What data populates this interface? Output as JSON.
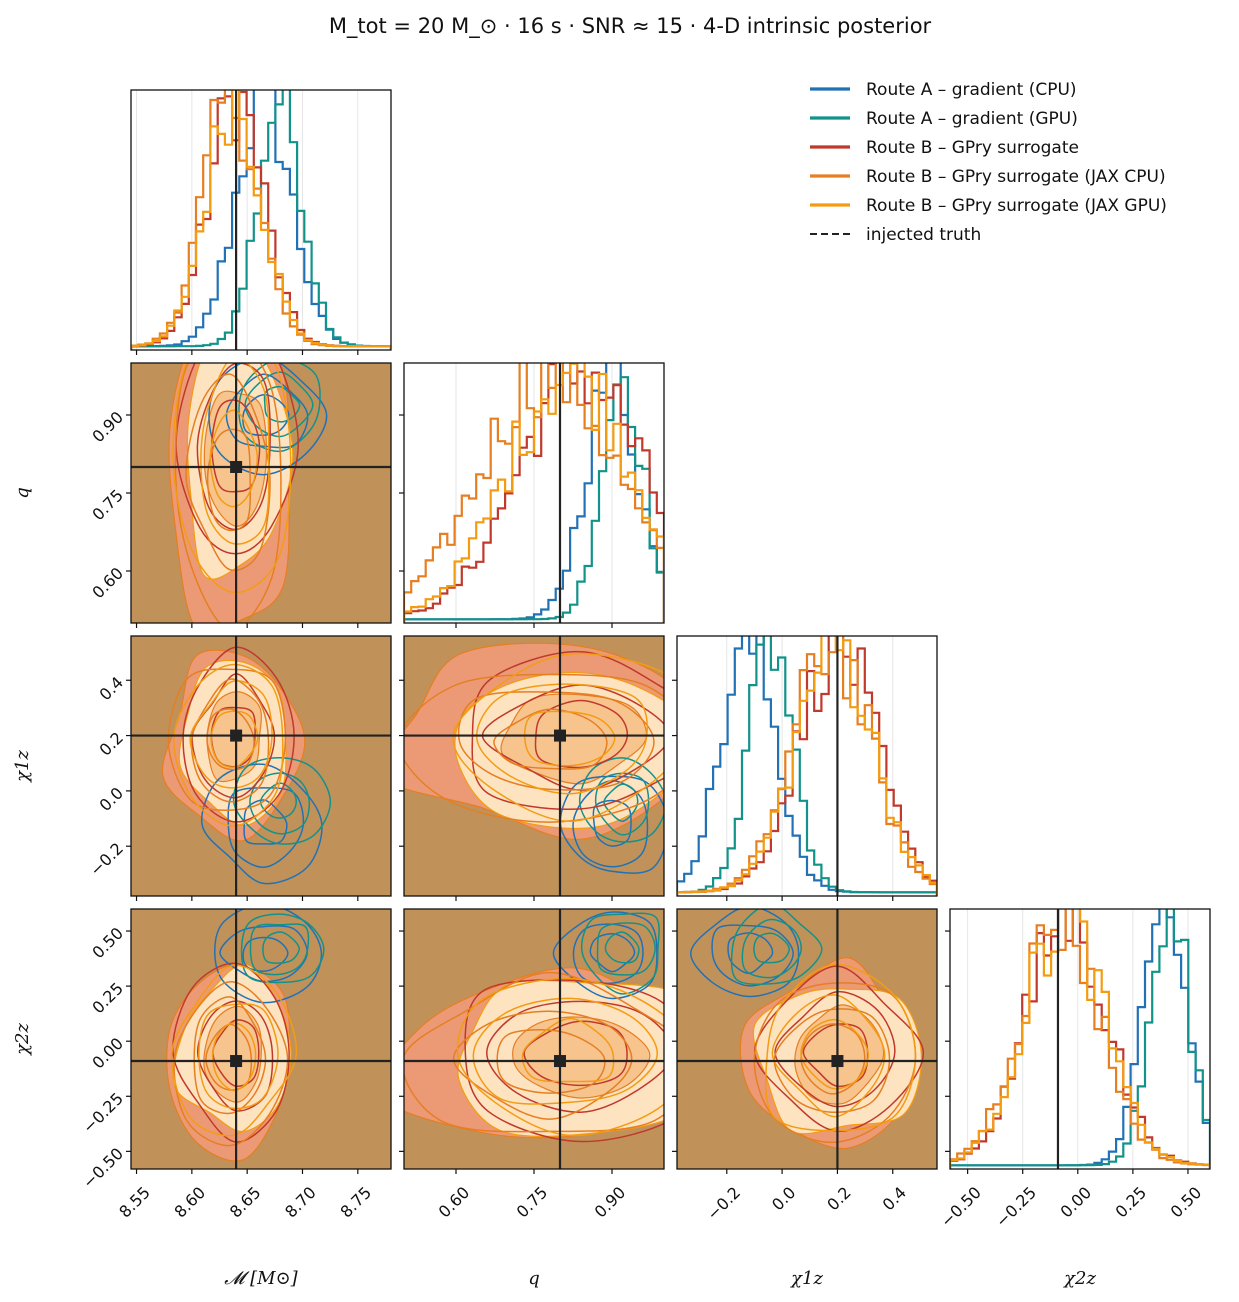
{
  "figure": {
    "title": "M_tot = 20 M_⊙   ·   16 s   ·   SNR ≈ 15   ·   4-D intrinsic posterior"
  },
  "colors": {
    "route_a_cpu": "#2271b5",
    "route_a_gpu": "#12938a",
    "route_b_gpry": "#c0392b",
    "route_b_jax_cpu": "#e67e22",
    "route_b_jax_gpu": "#f39c12",
    "truth": "#222222",
    "panel_background": "#c0925a",
    "fill_light": "#fde3c0",
    "fill_mid": "#f7c48e",
    "fill_red": "#ec9a76"
  },
  "chart_data": {
    "type": "corner",
    "parameters": [
      {
        "key": "mc",
        "label": "𝓜 [M⊙]",
        "range": [
          8.545,
          8.78
        ],
        "ticks": [
          "8.55",
          "8.60",
          "8.65",
          "8.70",
          "8.75"
        ],
        "tick_values": [
          8.55,
          8.6,
          8.65,
          8.7,
          8.75
        ]
      },
      {
        "key": "q",
        "label": "q",
        "range": [
          0.5,
          1.0
        ],
        "ticks": [
          "0.60",
          "0.75",
          "0.90"
        ],
        "tick_values": [
          0.6,
          0.75,
          0.9
        ]
      },
      {
        "key": "chi1z",
        "label": "χ1z",
        "range": [
          -0.38,
          0.56
        ],
        "ticks": [
          "−0.2",
          "0.0",
          "0.2",
          "0.4"
        ],
        "tick_values": [
          -0.2,
          0.0,
          0.2,
          0.4
        ]
      },
      {
        "key": "chi2z",
        "label": "χ2z",
        "range": [
          -0.58,
          0.6
        ],
        "ticks": [
          "−0.50",
          "−0.25",
          "0.00",
          "0.25",
          "0.50"
        ],
        "tick_values": [
          -0.5,
          -0.25,
          0.0,
          0.25,
          0.5
        ]
      }
    ],
    "truth": {
      "mc": 8.64,
      "q": 0.8,
      "chi1z": 0.2,
      "chi2z": -0.09
    },
    "series": [
      {
        "name": "Route A – gradient (CPU)",
        "color_key": "route_a_cpu",
        "centers": {
          "mc": 8.665,
          "q": 0.9,
          "chi1z": -0.12,
          "chi2z": 0.4
        },
        "spread": {
          "mc": 0.025,
          "q": 0.05,
          "chi1z": 0.1,
          "chi2z": 0.1
        }
      },
      {
        "name": "Route A – gradient (GPU)",
        "color_key": "route_a_gpu",
        "centers": {
          "mc": 8.68,
          "q": 0.92,
          "chi1z": -0.04,
          "chi2z": 0.42
        },
        "spread": {
          "mc": 0.02,
          "q": 0.04,
          "chi1z": 0.08,
          "chi2z": 0.09
        }
      },
      {
        "name": "Route B – GPry surrogate",
        "color_key": "route_b_gpry",
        "centers": {
          "mc": 8.64,
          "q": 0.84,
          "chi1z": 0.2,
          "chi2z": -0.05
        },
        "spread": {
          "mc": 0.025,
          "q": 0.12,
          "chi1z": 0.14,
          "chi2z": 0.18
        }
      },
      {
        "name": "Route B – GPry surrogate (JAX CPU)",
        "color_key": "route_b_jax_cpu",
        "centers": {
          "mc": 8.635,
          "q": 0.78,
          "chi1z": 0.18,
          "chi2z": -0.08
        },
        "spread": {
          "mc": 0.025,
          "q": 0.13,
          "chi1z": 0.14,
          "chi2z": 0.18
        }
      },
      {
        "name": "Route B – GPry surrogate (JAX GPU)",
        "color_key": "route_b_jax_gpu",
        "centers": {
          "mc": 8.638,
          "q": 0.82,
          "chi1z": 0.19,
          "chi2z": -0.06
        },
        "spread": {
          "mc": 0.025,
          "q": 0.12,
          "chi1z": 0.14,
          "chi2z": 0.18
        }
      }
    ],
    "legend": {
      "placement": "top-right",
      "entries": [
        {
          "label": "Route A – gradient (CPU)",
          "color_key": "route_a_cpu",
          "style": "solid"
        },
        {
          "label": "Route A – gradient (GPU)",
          "color_key": "route_a_gpu",
          "style": "solid"
        },
        {
          "label": "Route B – GPry surrogate",
          "color_key": "route_b_gpry",
          "style": "solid"
        },
        {
          "label": "Route B – GPry surrogate (JAX CPU)",
          "color_key": "route_b_jax_cpu",
          "style": "solid"
        },
        {
          "label": "Route B – GPry surrogate (JAX GPU)",
          "color_key": "route_b_jax_gpu",
          "style": "solid"
        },
        {
          "label": "injected truth",
          "color_key": "truth",
          "style": "dashed"
        }
      ]
    }
  }
}
